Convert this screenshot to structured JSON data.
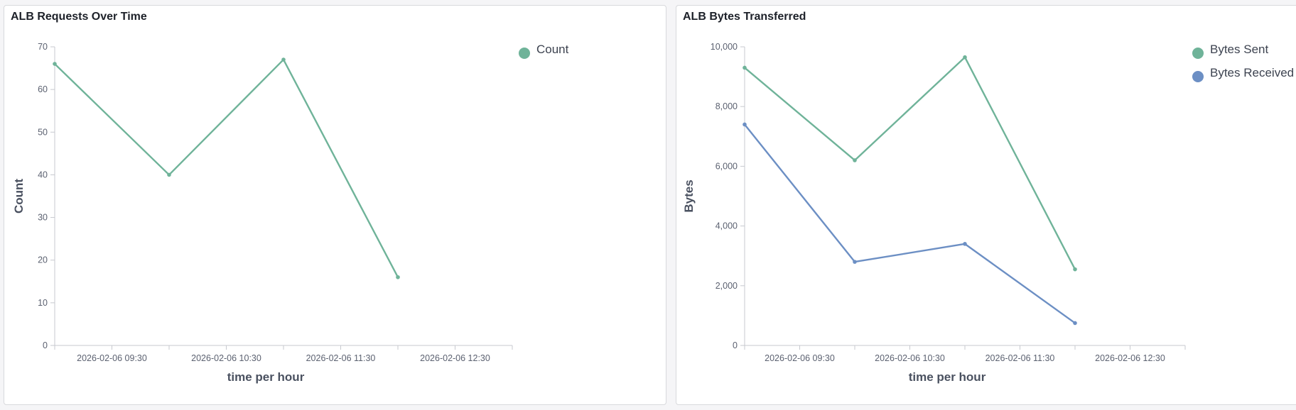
{
  "panels": {
    "left": {
      "title": "ALB Requests Over Time"
    },
    "right": {
      "title": "ALB Bytes Transferred"
    }
  },
  "chart_data": [
    {
      "type": "line",
      "title": "ALB Requests Over Time",
      "xlabel": "time per hour",
      "ylabel": "Count",
      "x": [
        "2026-02-06 09:00",
        "2026-02-06 10:00",
        "2026-02-06 11:00",
        "2026-02-06 12:00"
      ],
      "xlim": [
        "2026-02-06 09:00",
        "2026-02-06 13:00"
      ],
      "xticks": [
        "2026-02-06 09:30",
        "2026-02-06 10:30",
        "2026-02-06 11:30",
        "2026-02-06 12:30"
      ],
      "ylim": [
        0,
        70
      ],
      "yticks": [
        0,
        10,
        20,
        30,
        40,
        50,
        60,
        70
      ],
      "series": [
        {
          "name": "Count",
          "color": "#6fb399",
          "values": [
            66,
            40,
            67,
            16
          ]
        }
      ],
      "legend_position": "top-right",
      "grid": false
    },
    {
      "type": "line",
      "title": "ALB Bytes Transferred",
      "xlabel": "time per hour",
      "ylabel": "Bytes",
      "x": [
        "2026-02-06 09:00",
        "2026-02-06 10:00",
        "2026-02-06 11:00",
        "2026-02-06 12:00"
      ],
      "xlim": [
        "2026-02-06 09:00",
        "2026-02-06 13:00"
      ],
      "xticks": [
        "2026-02-06 09:30",
        "2026-02-06 10:30",
        "2026-02-06 11:30",
        "2026-02-06 12:30"
      ],
      "ylim": [
        0,
        10000
      ],
      "yticks": [
        0,
        2000,
        4000,
        6000,
        8000,
        10000
      ],
      "series": [
        {
          "name": "Bytes Sent",
          "color": "#6fb399",
          "values": [
            9300,
            6200,
            9650,
            2550
          ]
        },
        {
          "name": "Bytes Received",
          "color": "#6c8fc4",
          "values": [
            7400,
            2800,
            3400,
            750
          ]
        }
      ],
      "legend_position": "top-right",
      "grid": false
    }
  ]
}
